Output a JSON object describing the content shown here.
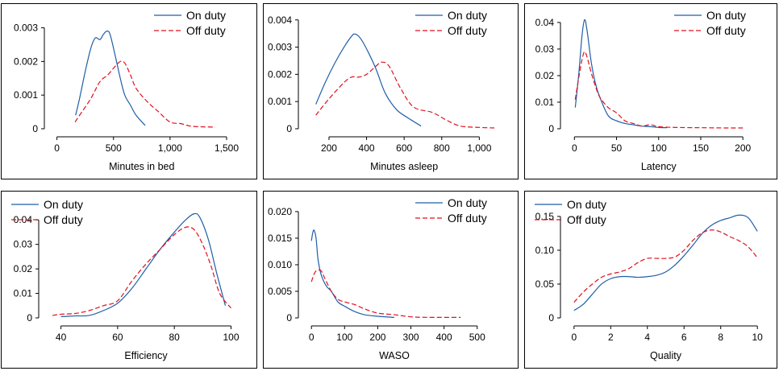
{
  "colors": {
    "on_duty": "#1f5fa8",
    "off_duty": "#e0101e"
  },
  "chart_data": [
    {
      "type": "line",
      "xlabel": "Minutes in bed",
      "xticks": [
        0,
        500,
        1000,
        1500
      ],
      "xtick_labels": [
        "0",
        "500",
        "1,000",
        "1,500"
      ],
      "yticks": [
        0,
        0.001,
        0.002,
        0.003
      ],
      "ytick_labels": [
        "0",
        "0.001",
        "0.002",
        "0.003"
      ],
      "xlim": [
        -40,
        1550
      ],
      "ylim": [
        0,
        0.0033
      ],
      "legend": "top-right",
      "series": [
        {
          "name": "On duty",
          "style": "solid",
          "points": [
            [
              165,
              0.0004
            ],
            [
              200,
              0.0009
            ],
            [
              250,
              0.0017
            ],
            [
              300,
              0.0024
            ],
            [
              340,
              0.0027
            ],
            [
              380,
              0.00265
            ],
            [
              410,
              0.0028
            ],
            [
              440,
              0.0029
            ],
            [
              470,
              0.0028
            ],
            [
              520,
              0.0021
            ],
            [
              560,
              0.0015
            ],
            [
              600,
              0.001
            ],
            [
              650,
              0.0007
            ],
            [
              700,
              0.0004
            ],
            [
              780,
              0.0001
            ]
          ]
        },
        {
          "name": "Off duty",
          "style": "dashed",
          "points": [
            [
              160,
              0.0002
            ],
            [
              200,
              0.0004
            ],
            [
              300,
              0.0009
            ],
            [
              380,
              0.0014
            ],
            [
              450,
              0.0016
            ],
            [
              500,
              0.0018
            ],
            [
              560,
              0.002
            ],
            [
              600,
              0.00195
            ],
            [
              650,
              0.0016
            ],
            [
              700,
              0.0012
            ],
            [
              800,
              0.0008
            ],
            [
              900,
              0.0005
            ],
            [
              1000,
              0.0002
            ],
            [
              1100,
              0.00015
            ],
            [
              1200,
              7e-05
            ],
            [
              1400,
              5e-05
            ]
          ]
        }
      ]
    },
    {
      "type": "line",
      "xlabel": "Minutes asleep",
      "xticks": [
        200,
        400,
        600,
        800,
        1000
      ],
      "xtick_labels": [
        "200",
        "400",
        "600",
        "800",
        "1,000"
      ],
      "yticks": [
        0,
        0.001,
        0.002,
        0.003,
        0.004
      ],
      "ytick_labels": [
        "0",
        "0.001",
        "0.002",
        "0.003",
        "0.004"
      ],
      "xlim": [
        80,
        1110
      ],
      "ylim": [
        0,
        0.0042
      ],
      "legend": "top-right",
      "series": [
        {
          "name": "On duty",
          "style": "solid",
          "points": [
            [
              130,
              0.0009
            ],
            [
              180,
              0.0017
            ],
            [
              230,
              0.0024
            ],
            [
              280,
              0.003
            ],
            [
              320,
              0.0034
            ],
            [
              340,
              0.00348
            ],
            [
              370,
              0.0033
            ],
            [
              410,
              0.0028
            ],
            [
              450,
              0.0022
            ],
            [
              500,
              0.0013
            ],
            [
              560,
              0.0007
            ],
            [
              620,
              0.0004
            ],
            [
              690,
              0.0001
            ]
          ]
        },
        {
          "name": "Off duty",
          "style": "dashed",
          "points": [
            [
              130,
              0.0005
            ],
            [
              200,
              0.0011
            ],
            [
              280,
              0.0017
            ],
            [
              320,
              0.0019
            ],
            [
              360,
              0.0019
            ],
            [
              400,
              0.002
            ],
            [
              450,
              0.0023
            ],
            [
              480,
              0.00245
            ],
            [
              520,
              0.0023
            ],
            [
              580,
              0.0015
            ],
            [
              650,
              0.0008
            ],
            [
              750,
              0.0006
            ],
            [
              830,
              0.0003
            ],
            [
              900,
              0.0001
            ],
            [
              1000,
              5e-05
            ],
            [
              1080,
              3e-05
            ]
          ]
        }
      ]
    },
    {
      "type": "line",
      "xlabel": "Latency",
      "xticks": [
        0,
        50,
        100,
        150,
        200
      ],
      "xtick_labels": [
        "0",
        "50",
        "100",
        "150",
        "200"
      ],
      "yticks": [
        0,
        0.01,
        0.02,
        0.03,
        0.04
      ],
      "ytick_labels": [
        "0",
        "0.01",
        "0.02",
        "0.03",
        "0.04"
      ],
      "xlim": [
        -7,
        218
      ],
      "ylim": [
        0,
        0.043
      ],
      "legend": "top-right",
      "series": [
        {
          "name": "On duty",
          "style": "solid",
          "points": [
            [
              1,
              0.008
            ],
            [
              5,
              0.02
            ],
            [
              9,
              0.035
            ],
            [
              12,
              0.041
            ],
            [
              15,
              0.037
            ],
            [
              20,
              0.025
            ],
            [
              25,
              0.017
            ],
            [
              30,
              0.012
            ],
            [
              40,
              0.005
            ],
            [
              50,
              0.003
            ],
            [
              60,
              0.002
            ],
            [
              70,
              0.0015
            ],
            [
              80,
              0.001
            ],
            [
              90,
              0.0008
            ],
            [
              100,
              0.0005
            ],
            [
              110,
              0.0004
            ]
          ]
        },
        {
          "name": "Off duty",
          "style": "dashed",
          "points": [
            [
              1,
              0.011
            ],
            [
              5,
              0.019
            ],
            [
              9,
              0.026
            ],
            [
              12,
              0.029
            ],
            [
              15,
              0.027
            ],
            [
              20,
              0.021
            ],
            [
              25,
              0.016
            ],
            [
              30,
              0.012
            ],
            [
              40,
              0.008
            ],
            [
              50,
              0.006
            ],
            [
              60,
              0.003
            ],
            [
              70,
              0.002
            ],
            [
              80,
              0.001
            ],
            [
              90,
              0.0015
            ],
            [
              100,
              0.0008
            ],
            [
              120,
              0.0005
            ],
            [
              150,
              0.0004
            ],
            [
              180,
              0.0003
            ],
            [
              200,
              0.0003
            ]
          ]
        }
      ]
    },
    {
      "type": "line",
      "xlabel": "Efficiency",
      "xticks": [
        40,
        60,
        80,
        100
      ],
      "xtick_labels": [
        "40",
        "60",
        "80",
        "100"
      ],
      "yticks": [
        0,
        0.01,
        0.02,
        0.03,
        0.04
      ],
      "ytick_labels": [
        "0",
        "0.01",
        "0.02",
        "0.03",
        "0.04"
      ],
      "xlim": [
        35,
        101
      ],
      "ylim": [
        0,
        0.045
      ],
      "legend": "top-left",
      "series": [
        {
          "name": "On duty",
          "style": "solid",
          "points": [
            [
              40,
              0.0005
            ],
            [
              45,
              0.0008
            ],
            [
              50,
              0.001
            ],
            [
              55,
              0.003
            ],
            [
              60,
              0.006
            ],
            [
              65,
              0.012
            ],
            [
              70,
              0.02
            ],
            [
              75,
              0.028
            ],
            [
              80,
              0.035
            ],
            [
              84,
              0.04
            ],
            [
              87,
              0.0425
            ],
            [
              89,
              0.041
            ],
            [
              92,
              0.032
            ],
            [
              95,
              0.018
            ],
            [
              98,
              0.005
            ]
          ]
        },
        {
          "name": "Off duty",
          "style": "dashed",
          "points": [
            [
              37,
              0.001
            ],
            [
              40,
              0.0015
            ],
            [
              45,
              0.0018
            ],
            [
              50,
              0.003
            ],
            [
              55,
              0.005
            ],
            [
              60,
              0.007
            ],
            [
              65,
              0.015
            ],
            [
              70,
              0.022
            ],
            [
              75,
              0.028
            ],
            [
              80,
              0.034
            ],
            [
              84,
              0.037
            ],
            [
              87,
              0.036
            ],
            [
              90,
              0.03
            ],
            [
              93,
              0.021
            ],
            [
              96,
              0.01
            ],
            [
              100,
              0.004
            ]
          ]
        }
      ]
    },
    {
      "type": "line",
      "xlabel": "WASO",
      "xticks": [
        0,
        100,
        200,
        300,
        400,
        500
      ],
      "xtick_labels": [
        "0",
        "100",
        "200",
        "300",
        "400",
        "500"
      ],
      "yticks": [
        0,
        0.005,
        0.01,
        0.015,
        0.02
      ],
      "ytick_labels": [
        "0",
        "0.005",
        "0.010",
        "0.015",
        "0.020"
      ],
      "xlim": [
        -15,
        520
      ],
      "ylim": [
        0,
        0.0212
      ],
      "legend": "top-right",
      "series": [
        {
          "name": "On duty",
          "style": "solid",
          "points": [
            [
              0,
              0.0145
            ],
            [
              4,
              0.016
            ],
            [
              8,
              0.0165
            ],
            [
              14,
              0.015
            ],
            [
              20,
              0.011
            ],
            [
              30,
              0.008
            ],
            [
              45,
              0.006
            ],
            [
              60,
              0.005
            ],
            [
              80,
              0.003
            ],
            [
              100,
              0.0022
            ],
            [
              130,
              0.0012
            ],
            [
              160,
              0.0006
            ],
            [
              200,
              0.0003
            ],
            [
              250,
              0.0001
            ]
          ]
        },
        {
          "name": "Off duty",
          "style": "dashed",
          "points": [
            [
              0,
              0.0068
            ],
            [
              10,
              0.0085
            ],
            [
              20,
              0.009
            ],
            [
              30,
              0.0088
            ],
            [
              40,
              0.0075
            ],
            [
              60,
              0.005
            ],
            [
              80,
              0.0035
            ],
            [
              100,
              0.003
            ],
            [
              130,
              0.0025
            ],
            [
              160,
              0.0017
            ],
            [
              200,
              0.0009
            ],
            [
              250,
              0.0006
            ],
            [
              300,
              0.0002
            ],
            [
              350,
              0.0001
            ],
            [
              450,
              0.0001
            ]
          ]
        }
      ]
    },
    {
      "type": "line",
      "xlabel": "Quality",
      "xticks": [
        0,
        2,
        4,
        6,
        8,
        10
      ],
      "xtick_labels": [
        "0",
        "2",
        "4",
        "6",
        "8",
        "10"
      ],
      "yticks": [
        0,
        0.05,
        0.1,
        0.15
      ],
      "ytick_labels": [
        "0",
        "0.05",
        "0.10",
        "0.15"
      ],
      "xlim": [
        -0.3,
        10.3
      ],
      "ylim": [
        0,
        0.163
      ],
      "legend": "top-left",
      "series": [
        {
          "name": "On duty",
          "style": "solid",
          "points": [
            [
              0,
              0.011
            ],
            [
              0.5,
              0.02
            ],
            [
              1,
              0.035
            ],
            [
              1.5,
              0.05
            ],
            [
              2,
              0.058
            ],
            [
              2.5,
              0.061
            ],
            [
              3,
              0.061
            ],
            [
              3.5,
              0.06
            ],
            [
              4,
              0.061
            ],
            [
              4.5,
              0.063
            ],
            [
              5,
              0.068
            ],
            [
              5.5,
              0.078
            ],
            [
              6,
              0.092
            ],
            [
              6.5,
              0.108
            ],
            [
              7,
              0.125
            ],
            [
              7.5,
              0.137
            ],
            [
              8,
              0.144
            ],
            [
              8.5,
              0.148
            ],
            [
              9,
              0.152
            ],
            [
              9.5,
              0.148
            ],
            [
              10,
              0.128
            ]
          ]
        },
        {
          "name": "Off duty",
          "style": "dashed",
          "points": [
            [
              0,
              0.023
            ],
            [
              0.5,
              0.038
            ],
            [
              1,
              0.05
            ],
            [
              1.5,
              0.06
            ],
            [
              2,
              0.065
            ],
            [
              2.5,
              0.068
            ],
            [
              3,
              0.073
            ],
            [
              3.5,
              0.082
            ],
            [
              4,
              0.088
            ],
            [
              4.5,
              0.088
            ],
            [
              5,
              0.088
            ],
            [
              5.5,
              0.09
            ],
            [
              6,
              0.1
            ],
            [
              6.5,
              0.115
            ],
            [
              7,
              0.126
            ],
            [
              7.5,
              0.13
            ],
            [
              8,
              0.127
            ],
            [
              8.5,
              0.12
            ],
            [
              9,
              0.114
            ],
            [
              9.5,
              0.105
            ],
            [
              10,
              0.089
            ]
          ]
        }
      ]
    }
  ]
}
